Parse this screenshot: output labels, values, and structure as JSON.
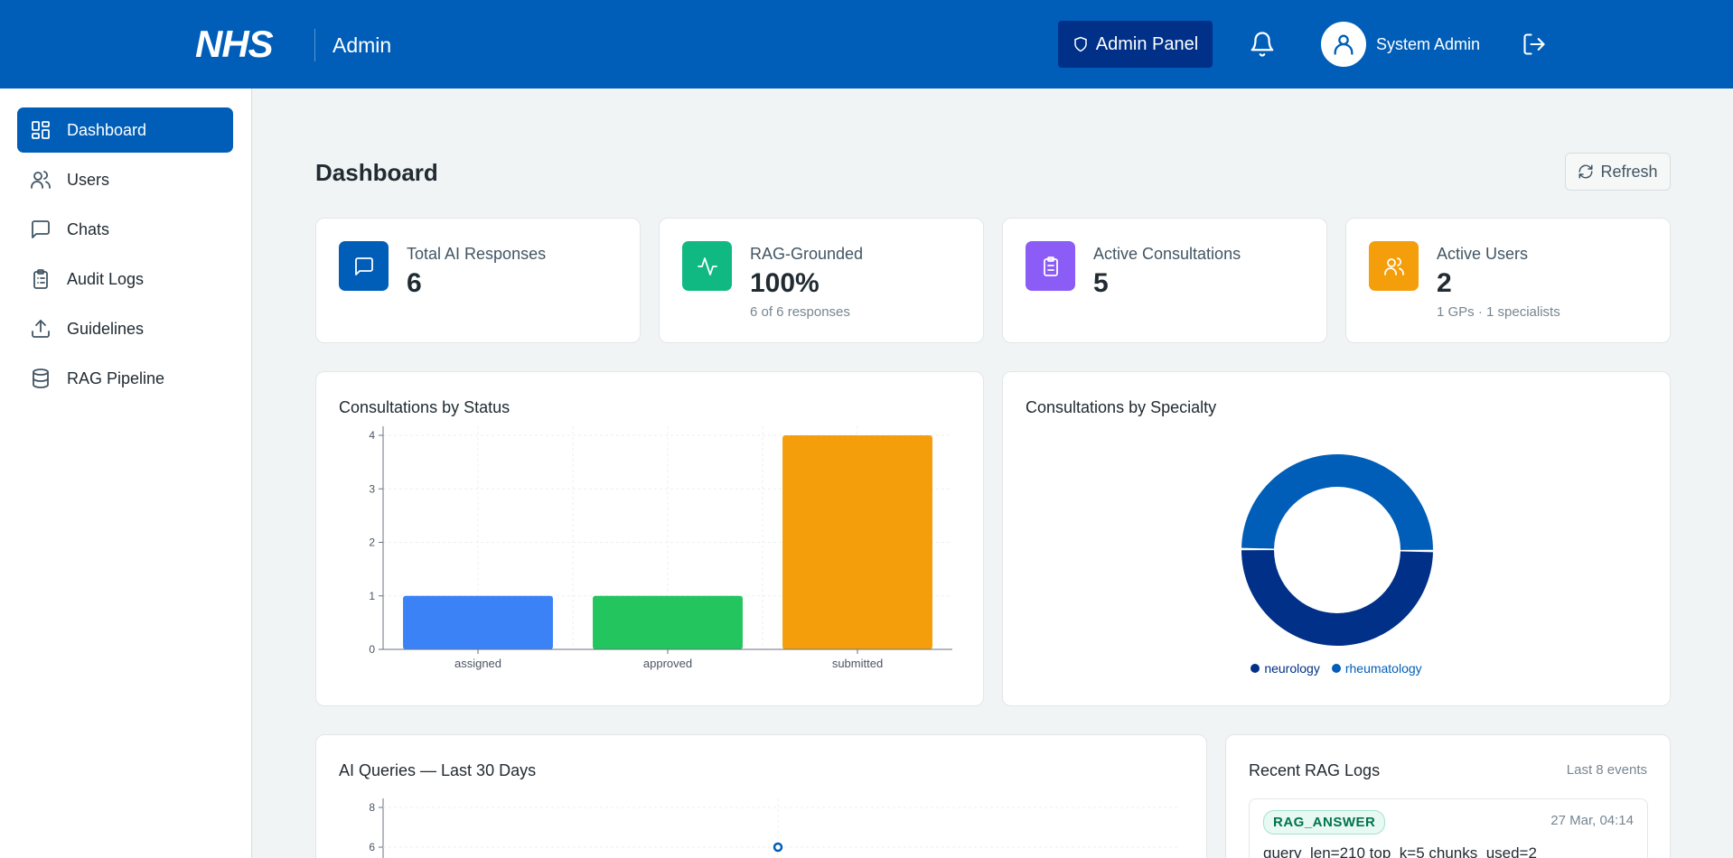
{
  "header": {
    "logo": "NHS",
    "title": "Admin",
    "admin_panel_label": "Admin Panel",
    "user_name": "System Admin",
    "icons": [
      "shield-icon",
      "bell-icon",
      "user-icon",
      "logout-icon"
    ]
  },
  "sidebar": {
    "items": [
      {
        "label": "Dashboard",
        "icon": "dashboard-icon",
        "active": true
      },
      {
        "label": "Users",
        "icon": "users-icon"
      },
      {
        "label": "Chats",
        "icon": "chat-icon"
      },
      {
        "label": "Audit Logs",
        "icon": "clipboard-icon"
      },
      {
        "label": "Guidelines",
        "icon": "upload-icon"
      },
      {
        "label": "RAG Pipeline",
        "icon": "database-icon"
      }
    ]
  },
  "page": {
    "title": "Dashboard",
    "refresh_label": "Refresh"
  },
  "stats": [
    {
      "label": "Total AI Responses",
      "value": "6",
      "sub": "",
      "icon": "chat-icon",
      "color": "#005eb8"
    },
    {
      "label": "RAG-Grounded",
      "value": "100%",
      "sub": "6 of 6 responses",
      "icon": "activity-icon",
      "color": "#10b981"
    },
    {
      "label": "Active Consultations",
      "value": "5",
      "sub": "",
      "icon": "clipboard-icon",
      "color": "#8b5cf6"
    },
    {
      "label": "Active Users",
      "value": "2",
      "sub": "1 GPs · 1 specialists",
      "icon": "users-icon",
      "color": "#f59e0b"
    }
  ],
  "status_chart": {
    "title": "Consultations by Status"
  },
  "specialty_chart": {
    "title": "Consultations by Specialty"
  },
  "queries_chart": {
    "title": "AI Queries — Last 30 Days"
  },
  "rag_logs": {
    "title": "Recent RAG Logs",
    "note": "Last 8 events",
    "entries": [
      {
        "badge": "RAG_ANSWER",
        "time": "27 Mar, 04:14",
        "text": "query_len=210 top_k=5 chunks_used=2"
      }
    ]
  },
  "chart_data": [
    {
      "type": "bar",
      "categories": [
        "assigned",
        "approved",
        "submitted"
      ],
      "values": [
        1,
        1,
        4
      ],
      "colors": [
        "#3b82f6",
        "#22c55e",
        "#f59e0b"
      ],
      "ylim": [
        0,
        4
      ],
      "yticks": [
        0,
        1,
        2,
        3,
        4
      ],
      "grid": true
    },
    {
      "type": "pie",
      "donut": true,
      "labels": [
        "neurology",
        "rheumatology"
      ],
      "values": [
        1,
        1
      ],
      "colors": [
        "#003087",
        "#005eb8"
      ],
      "legend": "bottom"
    },
    {
      "type": "line",
      "yticks": [
        6,
        8
      ],
      "visible_points": [
        {
          "y": 6
        }
      ]
    }
  ]
}
